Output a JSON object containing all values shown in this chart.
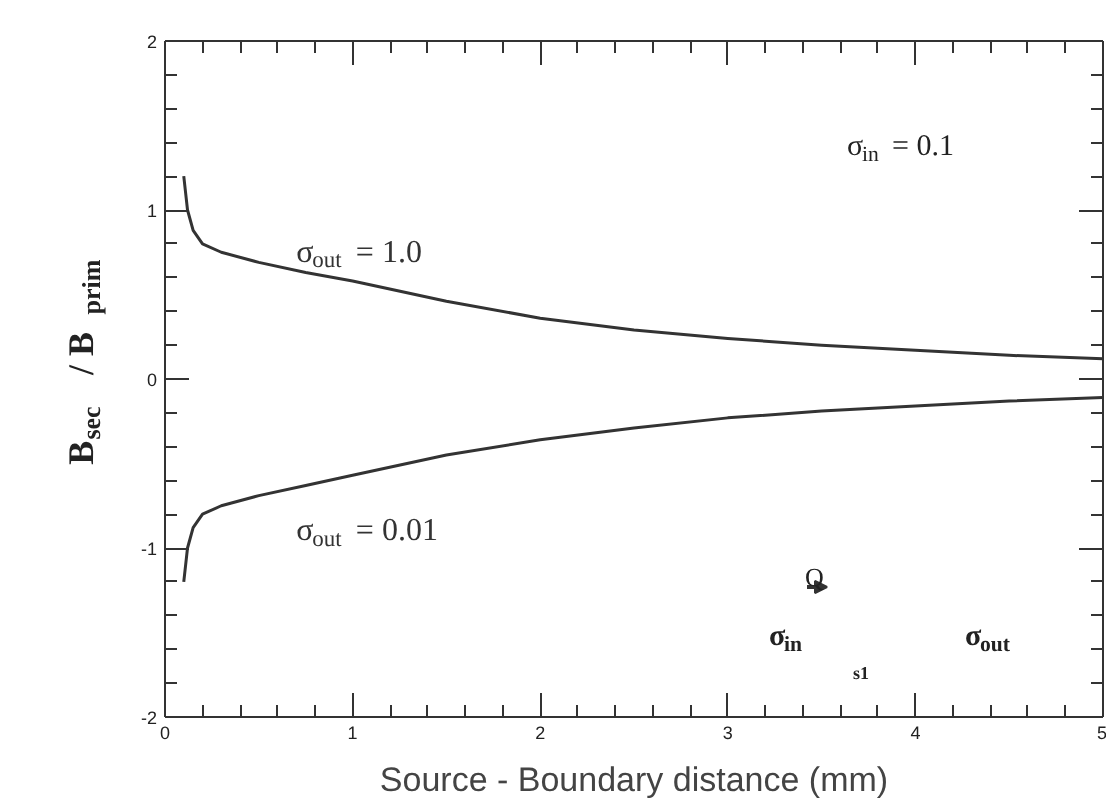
{
  "chart_data": {
    "type": "line",
    "xlabel": "Source - Boundary distance (mm)",
    "ylabel": "B$_{sec}$ / B$_{prim}$",
    "x": [
      0.1,
      0.11,
      0.12,
      0.15,
      0.2,
      0.3,
      0.5,
      0.75,
      1,
      1.5,
      2,
      2.5,
      3,
      3.5,
      4,
      4.5,
      5
    ],
    "series": [
      {
        "name": "σ$_{out}$ = 1.0",
        "color": "#333333",
        "values": [
          1.2,
          1.1,
          1.0,
          0.88,
          0.8,
          0.75,
          0.69,
          0.63,
          0.58,
          0.46,
          0.36,
          0.29,
          0.24,
          0.2,
          0.17,
          0.14,
          0.12
        ]
      },
      {
        "name": "σ$_{out}$ = 0.01",
        "color": "#333333",
        "values": [
          -1.2,
          -1.1,
          -1.0,
          -0.88,
          -0.8,
          -0.75,
          -0.69,
          -0.63,
          -0.57,
          -0.45,
          -0.36,
          -0.29,
          -0.23,
          -0.19,
          -0.16,
          -0.13,
          -0.11
        ]
      }
    ],
    "annotations": [
      "σ$_{in}$ = 0.1",
      "Q",
      "σ$_{in}$",
      "σ$_{out}$",
      "s1"
    ],
    "xlim": [
      0,
      5
    ],
    "ylim": [
      -2,
      2
    ],
    "xticks": [
      0,
      {
        "value": 0.2,
        "label": null
      },
      {
        "value": 0.4,
        "label": null
      },
      {
        "value": 0.6,
        "label": null
      },
      {
        "value": 0.8,
        "label": null
      },
      1,
      {
        "value": 1.2,
        "label": null
      },
      {
        "value": 1.4,
        "label": null
      },
      {
        "value": 1.6,
        "label": null
      },
      {
        "value": 1.8,
        "label": null
      },
      2,
      {
        "value": 2.2,
        "label": null
      },
      {
        "value": 2.4,
        "label": null
      },
      {
        "value": 2.6,
        "label": null
      },
      {
        "value": 2.8,
        "label": null
      },
      3,
      {
        "value": 3.2,
        "label": null
      },
      {
        "value": 3.4,
        "label": null
      },
      {
        "value": 3.6,
        "label": null
      },
      {
        "value": 3.8,
        "label": null
      },
      4,
      {
        "value": 4.2,
        "label": null
      },
      {
        "value": 4.4,
        "label": null
      },
      {
        "value": 4.6,
        "label": null
      },
      {
        "value": 4.8,
        "label": null
      },
      5
    ],
    "yticks": [
      -2,
      {
        "value": -1.8,
        "label": null
      },
      {
        "value": -1.6,
        "label": null
      },
      {
        "value": -1.4,
        "label": null
      },
      {
        "value": -1.2,
        "label": null
      },
      -1,
      {
        "value": -0.8,
        "label": null
      },
      {
        "value": -0.6,
        "label": null
      },
      {
        "value": -0.4,
        "label": null
      },
      {
        "value": -0.2,
        "label": null
      },
      0,
      {
        "value": 0.2,
        "label": null
      },
      {
        "value": 0.4,
        "label": null
      },
      {
        "value": 0.6,
        "label": null
      },
      {
        "value": 0.8,
        "label": null
      },
      1,
      {
        "value": 1.2,
        "label": null
      },
      {
        "value": 1.4,
        "label": null
      },
      {
        "value": 1.6,
        "label": null
      },
      {
        "value": 1.8,
        "label": null
      },
      2
    ],
    "grid": false,
    "legend": false,
    "marker": "none",
    "line_style": "solid"
  }
}
